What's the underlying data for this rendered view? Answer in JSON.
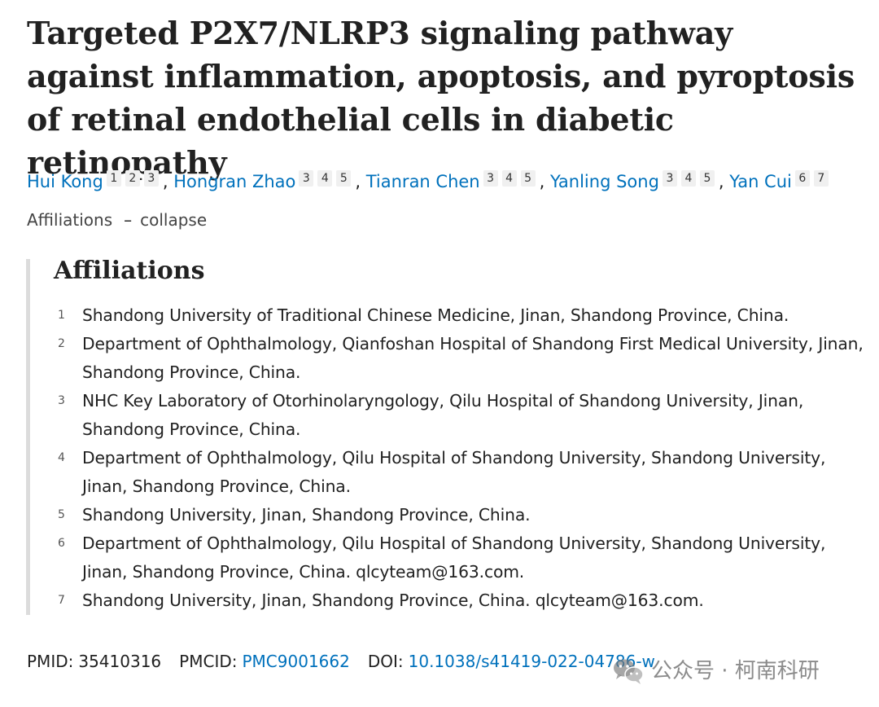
{
  "title": "Targeted P2X7/NLRP3 signaling pathway against inflammation, apoptosis, and pyroptosis of retinal endothelial cells in diabetic retinopathy",
  "authors": [
    {
      "name": "Hui Kong",
      "affils": [
        "1",
        "2",
        "3"
      ]
    },
    {
      "name": "Hongran Zhao",
      "affils": [
        "3",
        "4",
        "5"
      ]
    },
    {
      "name": "Tianran Chen",
      "affils": [
        "3",
        "4",
        "5"
      ]
    },
    {
      "name": "Yanling Song",
      "affils": [
        "3",
        "4",
        "5"
      ]
    },
    {
      "name": "Yan Cui",
      "affils": [
        "6",
        "7"
      ]
    }
  ],
  "affiliations_toggle": {
    "label": "Affiliations",
    "dash": "–",
    "action": "collapse"
  },
  "affiliations_heading": "Affiliations",
  "affiliations": [
    {
      "num": "1",
      "text": "Shandong University of Traditional Chinese Medicine, Jinan, Shandong Province, China."
    },
    {
      "num": "2",
      "text": "Department of Ophthalmology, Qianfoshan Hospital of Shandong First Medical University, Jinan, Shandong Province, China."
    },
    {
      "num": "3",
      "text": "NHC Key Laboratory of Otorhinolaryngology, Qilu Hospital of Shandong University, Jinan, Shandong Province, China."
    },
    {
      "num": "4",
      "text": "Department of Ophthalmology, Qilu Hospital of Shandong University, Shandong University, Jinan, Shandong Province, China."
    },
    {
      "num": "5",
      "text": "Shandong University, Jinan, Shandong Province, China."
    },
    {
      "num": "6",
      "text": "Department of Ophthalmology, Qilu Hospital of Shandong University, Shandong University, Jinan, Shandong Province, China. qlcyteam@163.com."
    },
    {
      "num": "7",
      "text": "Shandong University, Jinan, Shandong Province, China. qlcyteam@163.com."
    }
  ],
  "ids": {
    "pmid_label": "PMID:",
    "pmid": "35410316",
    "pmcid_label": "PMCID:",
    "pmcid": "PMC9001662",
    "doi_label": "DOI:",
    "doi": "10.1038/s41419-022-04786-w"
  },
  "watermark": {
    "text": "公众号 · 柯南科研",
    "icon": "wechat-icon"
  },
  "colors": {
    "link": "#0071bc",
    "text": "#212121",
    "rule": "#dcdcdc"
  }
}
